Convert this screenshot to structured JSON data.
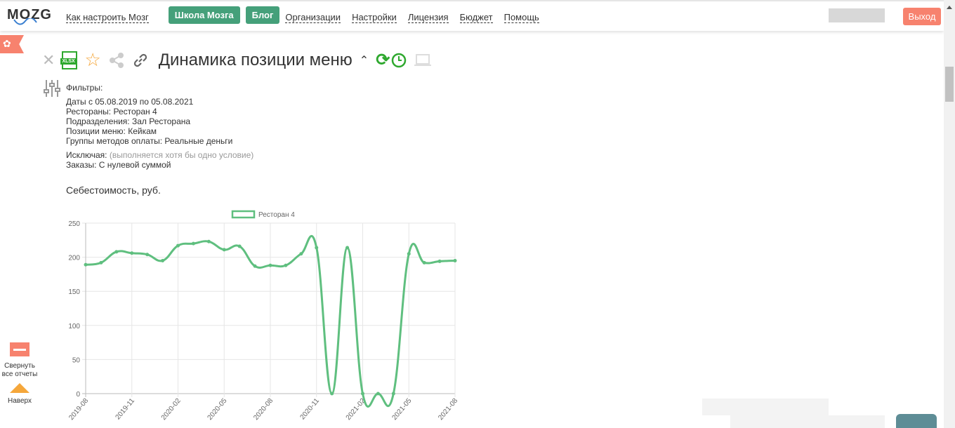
{
  "header": {
    "logo": "MOZG",
    "nav": [
      {
        "label": "Как настроить Мозг",
        "type": "link"
      },
      {
        "label": "Школа Мозга",
        "type": "button"
      },
      {
        "label": "Блог",
        "type": "button"
      },
      {
        "label": "Организации",
        "type": "link"
      },
      {
        "label": "Настройки",
        "type": "link"
      },
      {
        "label": "Лицензия",
        "type": "link"
      },
      {
        "label": "Бюджет",
        "type": "link"
      },
      {
        "label": "Помощь",
        "type": "link"
      }
    ],
    "logout": "Выход"
  },
  "report": {
    "title": "Динамика позиции меню",
    "xlsx": "XLSX",
    "filters_label": "Фильтры:",
    "filters": [
      {
        "k": "Даты",
        "v": "с 05.08.2019 по 05.08.2021"
      },
      {
        "k": "Рестораны:",
        "v": "Ресторан 4"
      },
      {
        "k": "Подразделения:",
        "v": "Зал Ресторана"
      },
      {
        "k": "Позиции меню:",
        "v": "Кейкам"
      },
      {
        "k": "Группы методов оплаты:",
        "v": "Реальные деньги"
      }
    ],
    "exclude_label": "Исключая:",
    "exclude_note": "(выполняется хотя бы одно условие)",
    "exclude": {
      "k": "Заказы:",
      "v": "С нулевой суммой"
    },
    "section": "Себестоимость, руб."
  },
  "sidebar": {
    "collapse": "Свернуть все отчеты",
    "top": "Наверх"
  },
  "colors": {
    "accent": "#45a07a",
    "danger": "#f7826e",
    "series": "#5fbf7f",
    "top": "#f5a73b"
  },
  "chart_data": {
    "type": "line",
    "legend": "top",
    "grid": true,
    "ylim": [
      0,
      250
    ],
    "yticks": [
      0,
      50,
      100,
      150,
      200,
      250
    ],
    "categories": [
      "2019-08",
      "2019-09",
      "2019-10",
      "2019-11",
      "2019-12",
      "2020-01",
      "2020-02",
      "2020-03",
      "2020-04",
      "2020-05",
      "2020-06",
      "2020-07",
      "2020-08",
      "2020-09",
      "2020-10",
      "2020-11",
      "2020-12",
      "2021-01",
      "2021-02",
      "2021-03",
      "2021-04",
      "2021-05",
      "2021-06",
      "2021-07",
      "2021-08"
    ],
    "xtick_labels": [
      "2019-08",
      "2019-11",
      "2020-02",
      "2020-05",
      "2020-08",
      "2020-11",
      "2021-02",
      "2021-05",
      "2021-08"
    ],
    "series": [
      {
        "name": "Ресторан 4",
        "values": [
          189,
          192,
          208,
          206,
          204,
          195,
          217,
          220,
          223,
          211,
          216,
          187,
          188,
          188,
          205,
          214,
          0,
          214,
          0,
          0,
          0,
          205,
          192,
          194,
          195
        ]
      }
    ]
  }
}
